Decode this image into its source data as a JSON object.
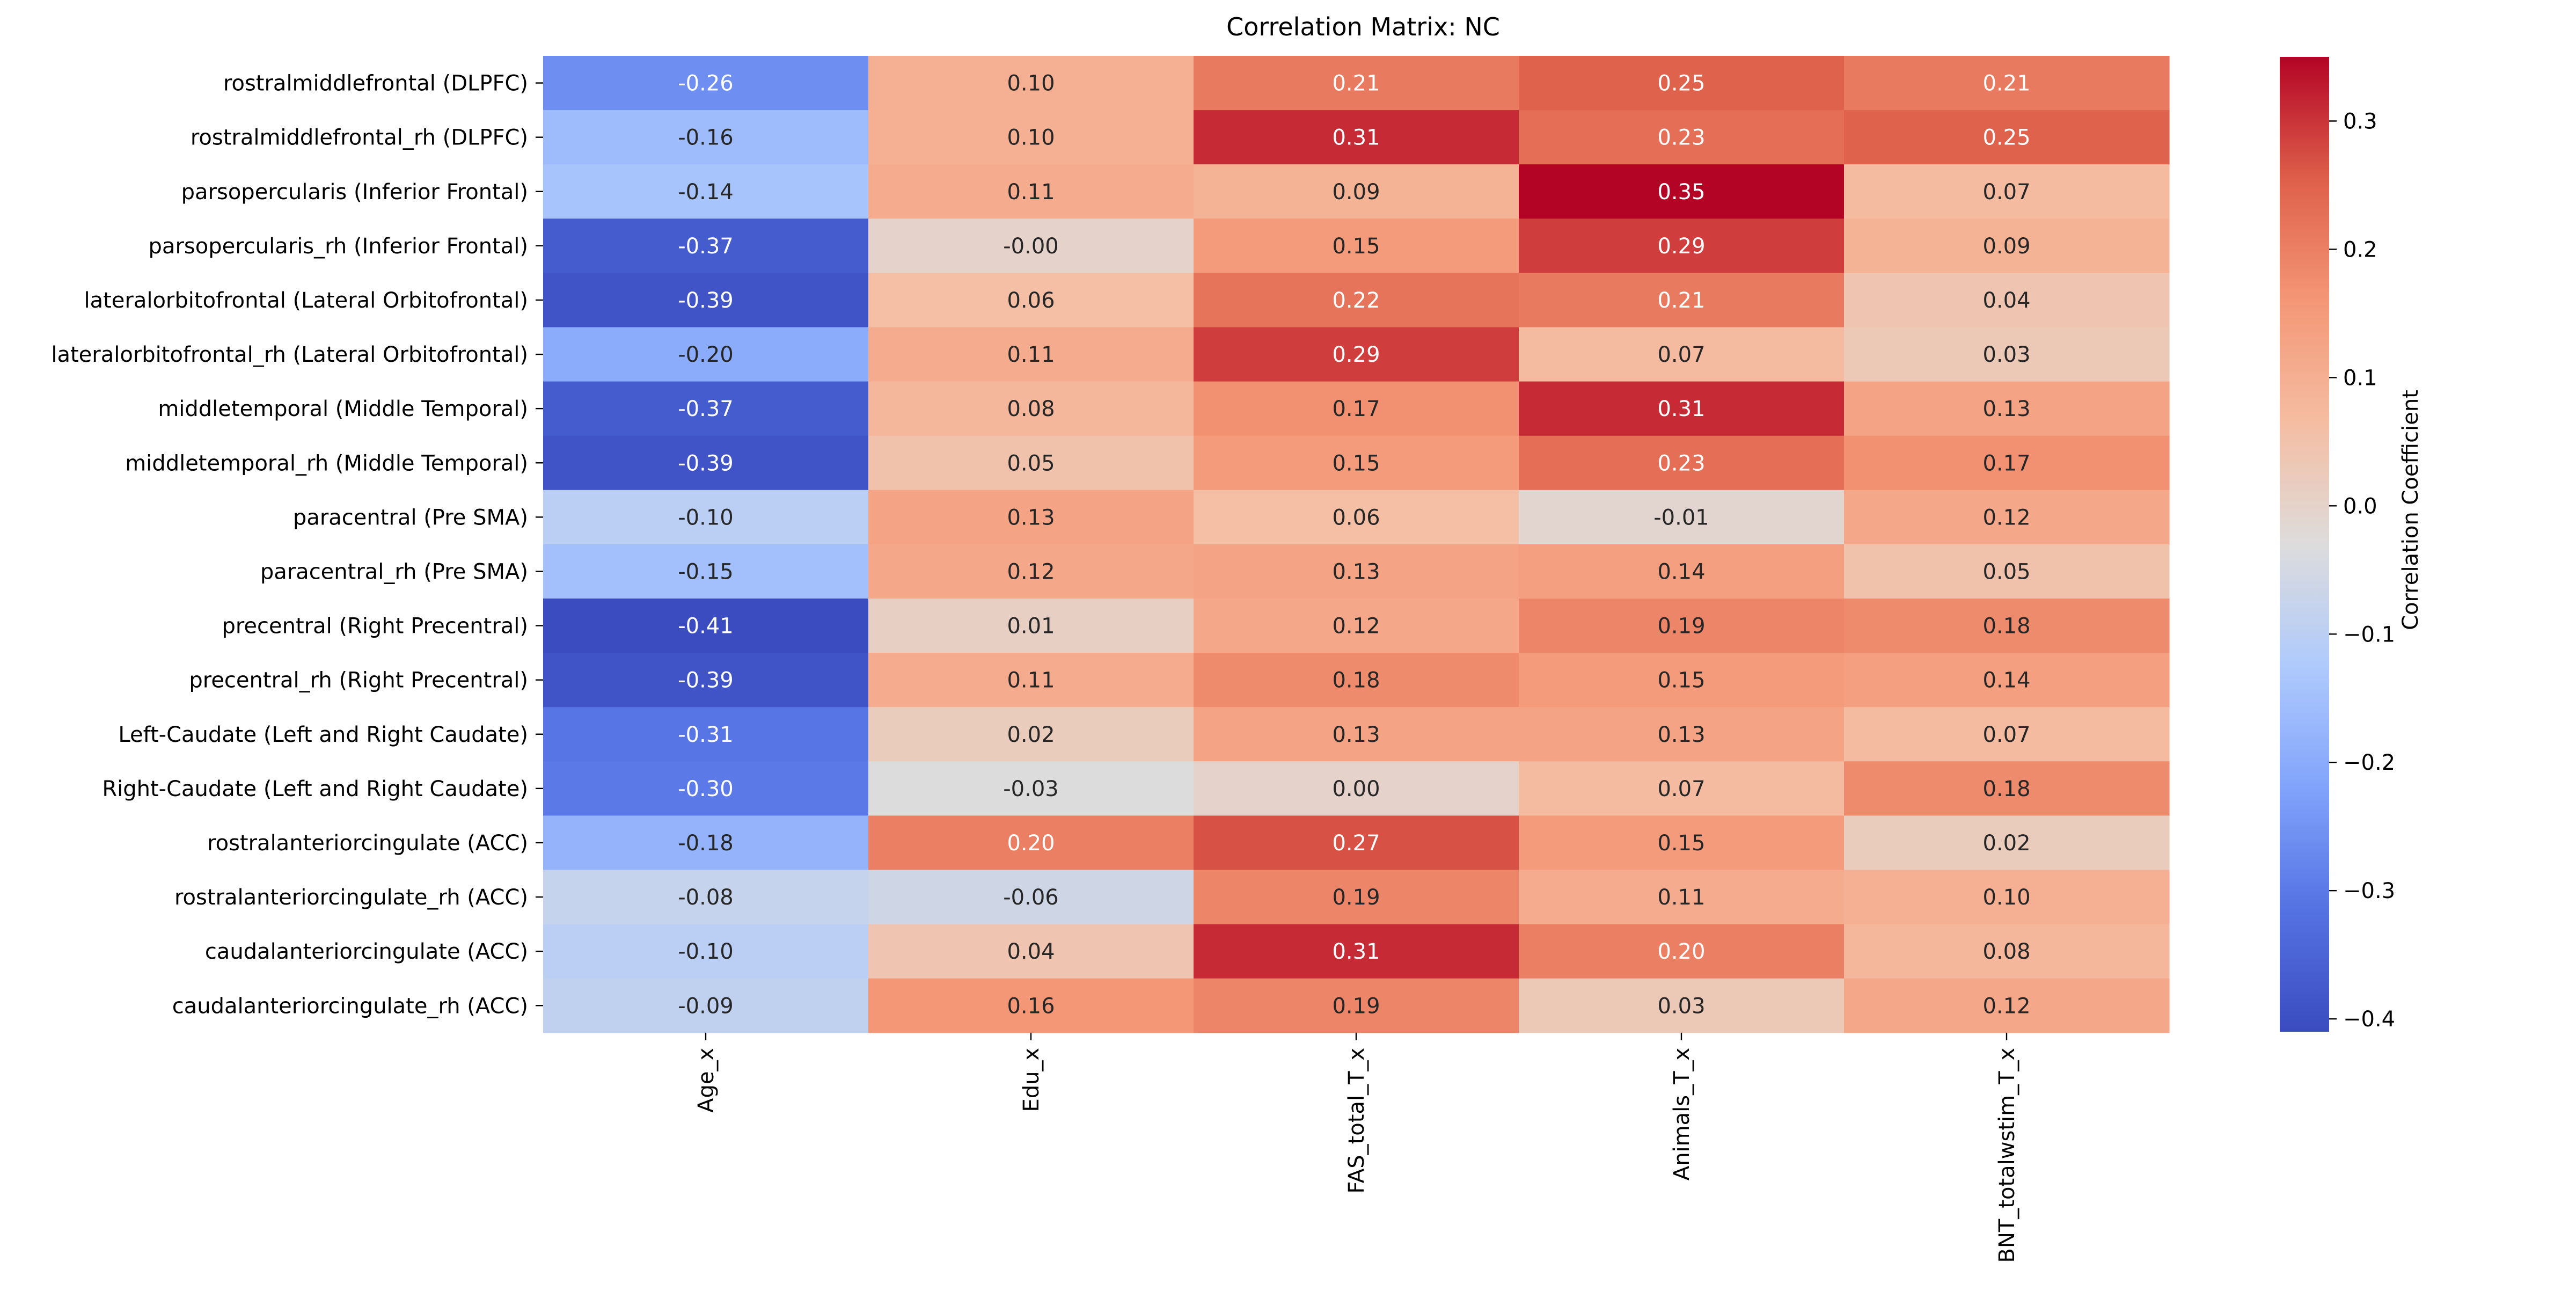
{
  "chart_data": {
    "type": "heatmap",
    "title": "Correlation Matrix: NC",
    "xlabel": "",
    "ylabel": "",
    "colorbar_label": "Correlation Coefficient",
    "colorbar_range": [
      -0.41,
      0.35
    ],
    "colorbar_ticks": [
      {
        "value": 0.3,
        "label": "0.3"
      },
      {
        "value": 0.2,
        "label": "0.2"
      },
      {
        "value": 0.1,
        "label": "0.1"
      },
      {
        "value": 0.0,
        "label": "0.0"
      },
      {
        "value": -0.1,
        "label": "−0.1"
      },
      {
        "value": -0.2,
        "label": "−0.2"
      },
      {
        "value": -0.3,
        "label": "−0.3"
      },
      {
        "value": -0.4,
        "label": "−0.4"
      }
    ],
    "colormap": "coolwarm",
    "columns": [
      "Age_x",
      "Edu_x",
      "FAS_total_T_x",
      "Animals_T_x",
      "BNT_totalwstim_T_x"
    ],
    "rows": [
      "rostralmiddlefrontal (DLPFC)",
      "rostralmiddlefrontal_rh (DLPFC)",
      "parsopercularis (Inferior Frontal)",
      "parsopercularis_rh (Inferior Frontal)",
      "lateralorbitofrontal (Lateral Orbitofrontal)",
      "lateralorbitofrontal_rh (Lateral Orbitofrontal)",
      "middletemporal (Middle Temporal)",
      "middletemporal_rh (Middle Temporal)",
      "paracentral (Pre SMA)",
      "paracentral_rh (Pre SMA)",
      "precentral (Right Precentral)",
      "precentral_rh (Right Precentral)",
      "Left-Caudate (Left and Right Caudate)",
      "Right-Caudate (Left and Right Caudate)",
      "rostralanteriorcingulate (ACC)",
      "rostralanteriorcingulate_rh (ACC)",
      "caudalanteriorcingulate (ACC)",
      "caudalanteriorcingulate_rh (ACC)"
    ],
    "values": [
      [
        -0.26,
        0.1,
        0.21,
        0.25,
        0.21
      ],
      [
        -0.16,
        0.1,
        0.31,
        0.23,
        0.25
      ],
      [
        -0.14,
        0.11,
        0.09,
        0.35,
        0.07
      ],
      [
        -0.37,
        -0.0,
        0.15,
        0.29,
        0.09
      ],
      [
        -0.39,
        0.06,
        0.22,
        0.21,
        0.04
      ],
      [
        -0.2,
        0.11,
        0.29,
        0.07,
        0.03
      ],
      [
        -0.37,
        0.08,
        0.17,
        0.31,
        0.13
      ],
      [
        -0.39,
        0.05,
        0.15,
        0.23,
        0.17
      ],
      [
        -0.1,
        0.13,
        0.06,
        -0.01,
        0.12
      ],
      [
        -0.15,
        0.12,
        0.13,
        0.14,
        0.05
      ],
      [
        -0.41,
        0.01,
        0.12,
        0.19,
        0.18
      ],
      [
        -0.39,
        0.11,
        0.18,
        0.15,
        0.14
      ],
      [
        -0.31,
        0.02,
        0.13,
        0.13,
        0.07
      ],
      [
        -0.3,
        -0.03,
        0.0,
        0.07,
        0.18
      ],
      [
        -0.18,
        0.2,
        0.27,
        0.15,
        0.02
      ],
      [
        -0.08,
        -0.06,
        0.19,
        0.11,
        0.1
      ],
      [
        -0.1,
        0.04,
        0.31,
        0.2,
        0.08
      ],
      [
        -0.09,
        0.16,
        0.19,
        0.03,
        0.12
      ]
    ],
    "annotations": [
      [
        "-0.26",
        "0.10",
        "0.21",
        "0.25",
        "0.21"
      ],
      [
        "-0.16",
        "0.10",
        "0.31",
        "0.23",
        "0.25"
      ],
      [
        "-0.14",
        "0.11",
        "0.09",
        "0.35",
        "0.07"
      ],
      [
        "-0.37",
        "-0.00",
        "0.15",
        "0.29",
        "0.09"
      ],
      [
        "-0.39",
        "0.06",
        "0.22",
        "0.21",
        "0.04"
      ],
      [
        "-0.20",
        "0.11",
        "0.29",
        "0.07",
        "0.03"
      ],
      [
        "-0.37",
        "0.08",
        "0.17",
        "0.31",
        "0.13"
      ],
      [
        "-0.39",
        "0.05",
        "0.15",
        "0.23",
        "0.17"
      ],
      [
        "-0.10",
        "0.13",
        "0.06",
        "-0.01",
        "0.12"
      ],
      [
        "-0.15",
        "0.12",
        "0.13",
        "0.14",
        "0.05"
      ],
      [
        "-0.41",
        "0.01",
        "0.12",
        "0.19",
        "0.18"
      ],
      [
        "-0.39",
        "0.11",
        "0.18",
        "0.15",
        "0.14"
      ],
      [
        "-0.31",
        "0.02",
        "0.13",
        "0.13",
        "0.07"
      ],
      [
        "-0.30",
        "-0.03",
        "0.00",
        "0.07",
        "0.18"
      ],
      [
        "-0.18",
        "0.20",
        "0.27",
        "0.15",
        "0.02"
      ],
      [
        "-0.08",
        "-0.06",
        "0.19",
        "0.11",
        "0.10"
      ],
      [
        "-0.10",
        "0.04",
        "0.31",
        "0.20",
        "0.08"
      ],
      [
        "-0.09",
        "0.16",
        "0.19",
        "0.03",
        "0.12"
      ]
    ],
    "grid": false,
    "legend": "colorbar-right"
  }
}
